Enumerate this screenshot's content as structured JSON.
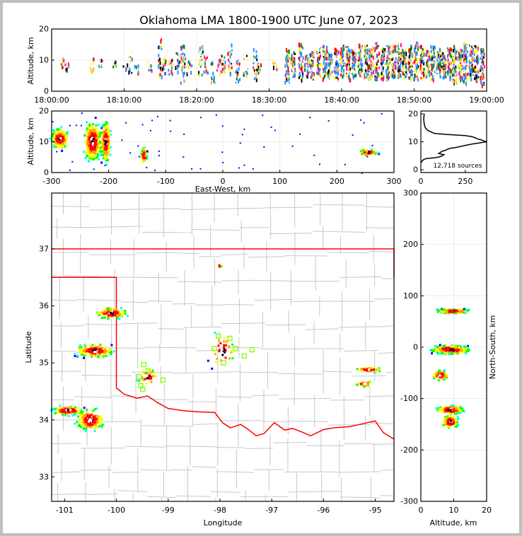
{
  "title": "Oklahoma LMA 1800-1900 UTC June 07, 2023",
  "colors": {
    "border": "#c0c0c0",
    "state_line": "#ff0000",
    "county_line": "#c8c8c8",
    "station": "#80ff00",
    "palette": [
      "#0000ff",
      "#00ffff",
      "#00ff00",
      "#ffff00",
      "#ffa500",
      "#ff0000",
      "#000000"
    ]
  },
  "chart_data": [
    {
      "id": "time-height",
      "type": "scatter",
      "ylabel": "Altitude, km",
      "ylim": [
        0,
        20
      ],
      "yticks": [
        0,
        10,
        20
      ],
      "xlim_minutes": [
        0,
        60
      ],
      "xticks": [
        0,
        10,
        20,
        30,
        40,
        50,
        60
      ],
      "xtick_labels": [
        "18:00:00",
        "18:10:00",
        "18:20:00",
        "18:30:00",
        "18:40:00",
        "18:50:00",
        "19:00:00"
      ],
      "flashes_min_altmin_altmax": [
        [
          1.5,
          8,
          11
        ],
        [
          2.2,
          7,
          9.5
        ],
        [
          5.5,
          6,
          11
        ],
        [
          6.7,
          7.5,
          10.5
        ],
        [
          8.6,
          8,
          10
        ],
        [
          10.1,
          7,
          9
        ],
        [
          10.8,
          6,
          13
        ],
        [
          11.6,
          6,
          9
        ],
        [
          13.5,
          7,
          10
        ],
        [
          14.9,
          5,
          17
        ],
        [
          15.4,
          6,
          12
        ],
        [
          16.3,
          5,
          11
        ],
        [
          17.3,
          6,
          14
        ],
        [
          18.0,
          3,
          15
        ],
        [
          18.3,
          5,
          11
        ],
        [
          19.0,
          6,
          10
        ],
        [
          20.5,
          5,
          15
        ],
        [
          21.2,
          6,
          13
        ],
        [
          22.1,
          3,
          10
        ],
        [
          23.0,
          6,
          11
        ],
        [
          23.6,
          5,
          12
        ],
        [
          24.5,
          6,
          16
        ],
        [
          25.6,
          3,
          11
        ],
        [
          26.7,
          5,
          12
        ],
        [
          28.0,
          4,
          14
        ],
        [
          28.5,
          5,
          10
        ],
        [
          30.7,
          7,
          10
        ],
        [
          32.4,
          3,
          14
        ],
        [
          33.2,
          5,
          13
        ],
        [
          34.3,
          4,
          16
        ],
        [
          35.1,
          5,
          12
        ],
        [
          35.8,
          4,
          13
        ],
        [
          36.7,
          5,
          14
        ],
        [
          37.6,
          4,
          15
        ],
        [
          38.3,
          5,
          13
        ],
        [
          39.2,
          4,
          14
        ],
        [
          40.0,
          5,
          15
        ],
        [
          40.8,
          4,
          15
        ],
        [
          41.6,
          4,
          14
        ],
        [
          42.5,
          5,
          16
        ],
        [
          43.3,
          4,
          15
        ],
        [
          44.0,
          4,
          15
        ],
        [
          44.8,
          4,
          16
        ],
        [
          45.6,
          4,
          14
        ],
        [
          46.3,
          4,
          15
        ],
        [
          47.1,
          4,
          15
        ],
        [
          47.9,
          4,
          16
        ],
        [
          48.6,
          4,
          14
        ],
        [
          49.4,
          4,
          15
        ],
        [
          50.2,
          4,
          16
        ],
        [
          51.0,
          4,
          15
        ],
        [
          51.8,
          5,
          14
        ],
        [
          52.5,
          4,
          15
        ],
        [
          53.3,
          5,
          14
        ],
        [
          54.0,
          4,
          13
        ],
        [
          54.8,
          4,
          15
        ],
        [
          55.5,
          3,
          15
        ],
        [
          56.3,
          4,
          15
        ],
        [
          57.0,
          3,
          16
        ],
        [
          57.8,
          4,
          15
        ],
        [
          58.5,
          3,
          15
        ],
        [
          59.3,
          2,
          14
        ]
      ]
    },
    {
      "id": "ew-alt",
      "type": "scatter",
      "xlabel": "East-West, km",
      "ylabel": "Altitude, km",
      "xlim": [
        -300,
        300
      ],
      "ylim": [
        0,
        20
      ],
      "xticks": [
        -300,
        -200,
        -100,
        0,
        100,
        200,
        300
      ],
      "yticks": [
        0,
        10,
        20
      ],
      "clusters_x_alt_sx_salt_n": [
        [
          -285,
          11,
          9,
          2,
          220
        ],
        [
          -228,
          10,
          9,
          4,
          380
        ],
        [
          -205,
          10,
          5,
          4,
          240
        ],
        [
          -138,
          5.5,
          3,
          1.6,
          70
        ],
        [
          255,
          6.5,
          10,
          0.6,
          60
        ]
      ]
    },
    {
      "id": "alt-histogram",
      "type": "line",
      "xlim": [
        0,
        370
      ],
      "ylim": [
        -1,
        21
      ],
      "xticks": [
        0,
        250
      ],
      "yticks": [
        0,
        10,
        20
      ],
      "annotation": "12,718 sources",
      "points_count_alt": [
        [
          20,
          20
        ],
        [
          18,
          19.5
        ],
        [
          16,
          18
        ],
        [
          20,
          16
        ],
        [
          25,
          15
        ],
        [
          40,
          14
        ],
        [
          60,
          13.5
        ],
        [
          75,
          13
        ],
        [
          150,
          12.6
        ],
        [
          250,
          12.2
        ],
        [
          290,
          11.8
        ],
        [
          310,
          11.3
        ],
        [
          320,
          11
        ],
        [
          340,
          10.7
        ],
        [
          350,
          10.4
        ],
        [
          370,
          10
        ],
        [
          330,
          9.6
        ],
        [
          290,
          9.2
        ],
        [
          250,
          8.7
        ],
        [
          200,
          8
        ],
        [
          160,
          7.6
        ],
        [
          140,
          7
        ],
        [
          120,
          6.6
        ],
        [
          110,
          6.2
        ],
        [
          100,
          5.8
        ],
        [
          130,
          5.4
        ],
        [
          120,
          5
        ],
        [
          105,
          4.6
        ],
        [
          80,
          4.3
        ],
        [
          30,
          4
        ],
        [
          15,
          3.6
        ],
        [
          8,
          3.2
        ],
        [
          3,
          2.8
        ],
        [
          0,
          2.4
        ]
      ]
    },
    {
      "id": "plan-view",
      "type": "scatter",
      "xlabel": "Longitude",
      "ylabel": "Latitude",
      "xlim": [
        -101.25,
        -94.64
      ],
      "ylim": [
        32.57,
        37.98
      ],
      "xticks": [
        -101,
        -100,
        -99,
        -98,
        -97,
        -96,
        -95
      ],
      "yticks": [
        33,
        34,
        35,
        36,
        37
      ],
      "clusters_lon_lat_slon_slat_n": [
        [
          -100.1,
          35.87,
          0.18,
          0.06,
          120
        ],
        [
          -100.42,
          35.21,
          0.22,
          0.07,
          160
        ],
        [
          -100.93,
          34.16,
          0.18,
          0.05,
          130
        ],
        [
          -100.5,
          34.0,
          0.16,
          0.12,
          170
        ],
        [
          -95.12,
          34.88,
          0.16,
          0.03,
          40
        ],
        [
          -95.2,
          34.63,
          0.1,
          0.03,
          30
        ],
        [
          -97.95,
          35.2,
          0.15,
          0.2,
          40
        ],
        [
          -99.4,
          34.75,
          0.12,
          0.1,
          30
        ],
        [
          -98.0,
          36.7,
          0.02,
          0.02,
          5
        ]
      ],
      "oklahoma_border_lon_lat": [
        [
          -101.25,
          37.0
        ],
        [
          -94.64,
          37.0
        ],
        [
          -94.64,
          36.5
        ]
      ],
      "panhandle_lon_lat": [
        [
          -101.25,
          36.5
        ],
        [
          -100.0,
          36.5
        ],
        [
          -100.0,
          34.56
        ]
      ],
      "red_river_lon_lat": [
        [
          -100.0,
          34.56
        ],
        [
          -99.85,
          34.45
        ],
        [
          -99.6,
          34.38
        ],
        [
          -99.4,
          34.42
        ],
        [
          -99.2,
          34.3
        ],
        [
          -99.0,
          34.2
        ],
        [
          -98.7,
          34.16
        ],
        [
          -98.4,
          34.14
        ],
        [
          -98.1,
          34.13
        ],
        [
          -97.95,
          33.95
        ],
        [
          -97.8,
          33.86
        ],
        [
          -97.6,
          33.92
        ],
        [
          -97.45,
          33.83
        ],
        [
          -97.3,
          33.72
        ],
        [
          -97.15,
          33.76
        ],
        [
          -96.95,
          33.95
        ],
        [
          -96.75,
          33.82
        ],
        [
          -96.6,
          33.85
        ],
        [
          -96.4,
          33.78
        ],
        [
          -96.25,
          33.72
        ],
        [
          -96.0,
          33.83
        ],
        [
          -95.8,
          33.86
        ],
        [
          -95.5,
          33.88
        ],
        [
          -95.3,
          33.92
        ],
        [
          -95.15,
          33.95
        ],
        [
          -95.0,
          33.98
        ],
        [
          -94.85,
          33.78
        ],
        [
          -94.64,
          33.66
        ]
      ],
      "stations_lon_lat": [
        [
          -99.47,
          34.97
        ],
        [
          -99.56,
          34.76
        ],
        [
          -99.39,
          34.86
        ],
        [
          -99.49,
          34.54
        ],
        [
          -99.1,
          34.7
        ],
        [
          -99.53,
          34.6
        ],
        [
          -98.03,
          35.47
        ],
        [
          -97.81,
          35.43
        ],
        [
          -98.11,
          35.25
        ],
        [
          -97.93,
          35.0
        ],
        [
          -97.53,
          35.12
        ],
        [
          -97.38,
          35.23
        ],
        [
          -97.7,
          35.25
        ]
      ]
    },
    {
      "id": "alt-ns",
      "type": "scatter",
      "xlabel": "Altitude, km",
      "ylabel": "North-South, km",
      "xlim": [
        0,
        20
      ],
      "ylim": [
        -300,
        300
      ],
      "xticks": [
        0,
        10,
        20
      ],
      "yticks": [
        -300,
        -200,
        -100,
        0,
        100,
        200,
        300
      ],
      "clusters_alt_y_salt_sy_n": [
        [
          10,
          70,
          3,
          2.5,
          180
        ],
        [
          9,
          -5,
          3.5,
          5,
          300
        ],
        [
          6,
          -55,
          1.5,
          6,
          80
        ],
        [
          9,
          -122,
          2.5,
          5,
          200
        ],
        [
          9,
          -145,
          1.5,
          8,
          120
        ]
      ]
    }
  ]
}
